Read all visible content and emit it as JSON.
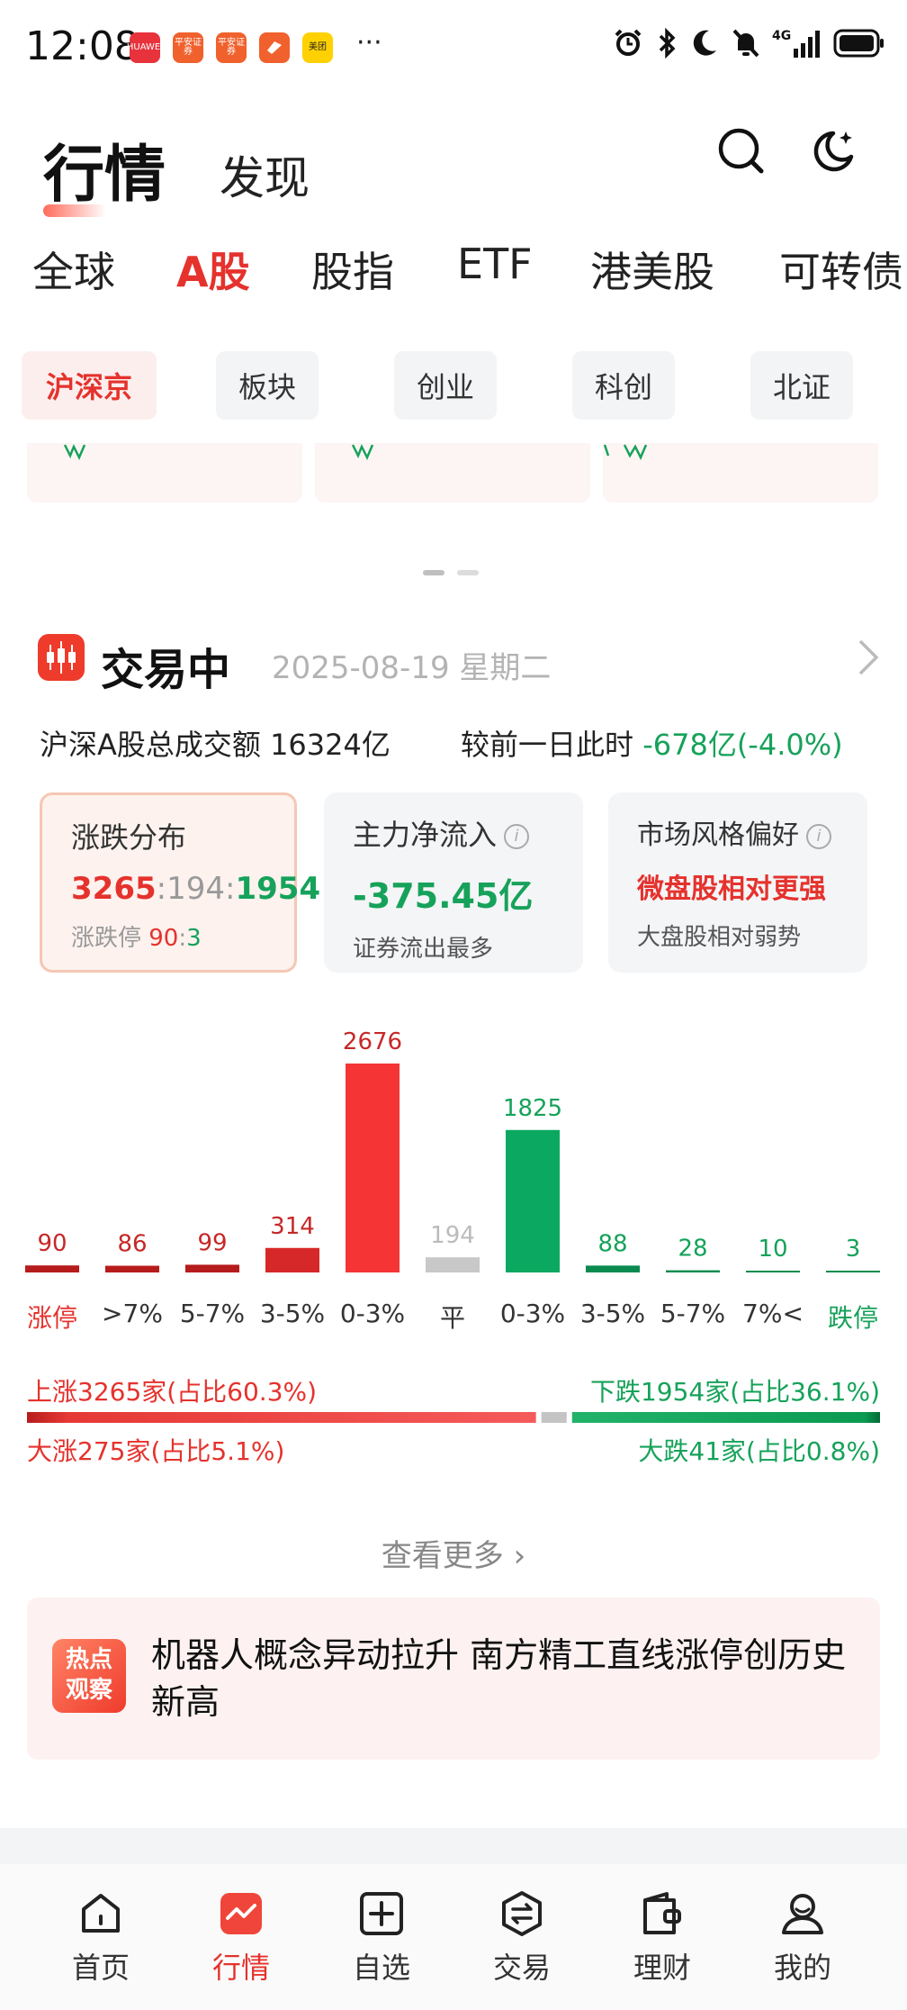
{
  "status_bar": {
    "time": "12:08",
    "apps": [
      {
        "name": "HUAWEI",
        "color": "#e8323c"
      },
      {
        "name": "平安证券",
        "color": "#f0612d"
      },
      {
        "name": "平安证券",
        "color": "#f0612d"
      },
      {
        "name": "",
        "color": "#f0612d"
      },
      {
        "name": "美团",
        "color": "#ffd100"
      }
    ],
    "more": "···",
    "network": "4G"
  },
  "header": {
    "title": "行情",
    "subtitle": "发现"
  },
  "market_tabs": [
    "全球",
    "A股",
    "股指",
    "ETF",
    "港美股",
    "可转债"
  ],
  "sub_tabs": [
    "沪深京",
    "板块",
    "创业",
    "科创",
    "北证"
  ],
  "trading": {
    "title": "交易中",
    "date": "2025-08-19 星期二",
    "turnover": "沪深A股总成交额 16324亿",
    "compare_label": "较前一日此时 ",
    "compare_value": "-678亿(-4.0%)"
  },
  "cards": {
    "distribution": {
      "title": "涨跌分布",
      "up": "3265",
      "sep1": ":",
      "flat": "194",
      "sep2": ":",
      "down": "1954",
      "limit_label": "涨跌停 ",
      "limit_up": "90",
      "limit_sep": ":",
      "limit_down": "3"
    },
    "main_flow": {
      "title": "主力净流入",
      "value": "-375.45亿",
      "sub": "证券流出最多"
    },
    "style": {
      "title": "市场风格偏好",
      "value": "微盘股相对更强",
      "sub": "大盘股相对弱势"
    }
  },
  "chart_data": {
    "type": "bar",
    "categories": [
      "涨停",
      ">7%",
      "5-7%",
      "3-5%",
      "0-3%",
      "平",
      "0-3%",
      "3-5%",
      "5-7%",
      "7%<",
      "跌停"
    ],
    "values": [
      90,
      86,
      99,
      314,
      2676,
      194,
      1825,
      88,
      28,
      10,
      3
    ],
    "colors": [
      "#b71c1c",
      "#b71c1c",
      "#b71c1c",
      "#d62828",
      "#f53535",
      "#c8c8c8",
      "#0aa860",
      "#0a8a4f",
      "#0a8a4f",
      "#0a8a4f",
      "#0a8a4f"
    ],
    "label_colors": [
      "#c62828",
      "#c62828",
      "#c62828",
      "#c62828",
      "#c62828",
      "#bbbbbb",
      "#16a25a",
      "#16a25a",
      "#16a25a",
      "#16a25a",
      "#16a25a"
    ]
  },
  "ratio": {
    "rise_text": "上涨3265家(占比60.3%)",
    "fall_text": "下跌1954家(占比36.1%)",
    "big_rise_text": "大涨275家(占比5.1%)",
    "big_fall_text": "大跌41家(占比0.8%)",
    "rise_pct": 60.3,
    "flat_pct": 3.6,
    "fall_pct": 36.1
  },
  "more_label": "查看更多 ›",
  "news": {
    "badge_line1": "热点",
    "badge_line2": "观察",
    "text": "机器人概念异动拉升 南方精工直线涨停创历史新高"
  },
  "nav": [
    {
      "label": "首页",
      "icon": "home-icon"
    },
    {
      "label": "行情",
      "icon": "market-icon"
    },
    {
      "label": "自选",
      "icon": "watchlist-icon"
    },
    {
      "label": "交易",
      "icon": "trade-icon"
    },
    {
      "label": "理财",
      "icon": "wallet-icon"
    },
    {
      "label": "我的",
      "icon": "profile-icon"
    }
  ]
}
